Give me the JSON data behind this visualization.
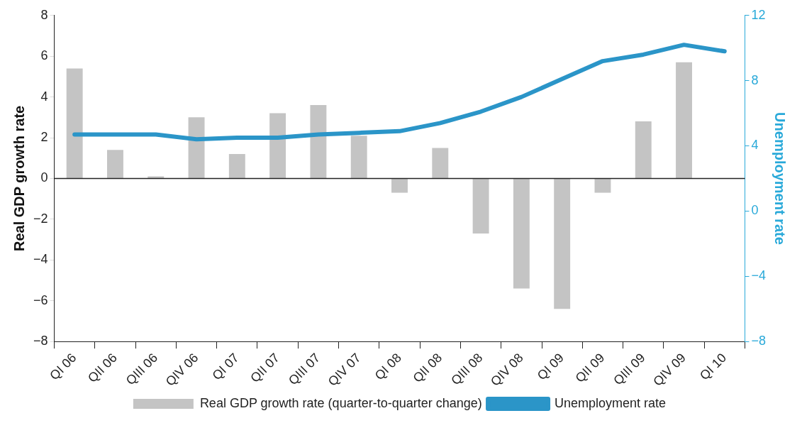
{
  "chart_data": {
    "type": "bar",
    "ylabel": "Real GDP growth rate",
    "y2label": "Unemployment rate",
    "categories": [
      "QI 06",
      "QII 06",
      "QIII 06",
      "QIV 06",
      "QI 07",
      "QII 07",
      "QIII 07",
      "QIV 07",
      "QI 08",
      "QII 08",
      "QIII 08",
      "QIV 08",
      "QI 09",
      "QII 09",
      "QIII 09",
      "QIV 09",
      "QI 10"
    ],
    "series": [
      {
        "name": "Real GDP growth rate (quarter-to-quarter change)",
        "color": "#c4c4c4",
        "values": [
          5.4,
          1.4,
          0.1,
          3.0,
          1.2,
          3.2,
          3.6,
          2.1,
          -0.7,
          1.5,
          -2.7,
          -5.4,
          -6.4,
          -0.7,
          2.8,
          5.7,
          null
        ]
      },
      {
        "name": "Unemployment rate",
        "type": "line",
        "axis": "y2",
        "color": "#2b95c8",
        "values": [
          4.7,
          4.7,
          4.7,
          4.4,
          4.5,
          4.5,
          4.7,
          4.8,
          4.9,
          5.4,
          6.1,
          7.0,
          8.1,
          9.2,
          9.6,
          10.2,
          9.8
        ]
      }
    ],
    "ylim": [
      -8,
      8
    ],
    "yticks": [
      {
        "value": -8,
        "label": "−8"
      },
      {
        "value": -6,
        "label": "−6"
      },
      {
        "value": -4,
        "label": "−4"
      },
      {
        "value": -2,
        "label": "−2"
      },
      0,
      2,
      4,
      6,
      8
    ],
    "y2lim": [
      -8,
      12
    ],
    "y2ticks": [
      {
        "value": -8,
        "label": "−8"
      },
      {
        "value": -4,
        "label": "−4"
      },
      0,
      4,
      8,
      12
    ],
    "ref_lines": [
      {
        "axis": "y",
        "value": 0,
        "color": "#222222"
      }
    ],
    "grid": false,
    "legend": "bottom",
    "marker": "none",
    "line_style": "solid"
  }
}
